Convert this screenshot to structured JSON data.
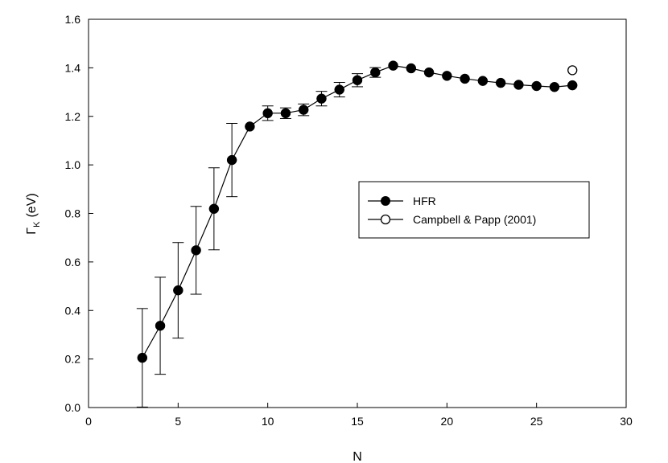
{
  "chart_data": {
    "type": "scatter",
    "xlabel": "N",
    "ylabel_main": "Γ",
    "ylabel_sub": "K",
    "ylabel_unit": "(eV)",
    "xlim": [
      0,
      30
    ],
    "ylim": [
      0,
      1.6
    ],
    "xticks": [
      0,
      5,
      10,
      15,
      20,
      25,
      30
    ],
    "yticks": [
      0.0,
      0.2,
      0.4,
      0.6,
      0.8,
      1.0,
      1.2,
      1.4,
      1.6
    ],
    "xtick_labels": [
      "0",
      "5",
      "10",
      "15",
      "20",
      "25",
      "30"
    ],
    "ytick_labels": [
      "0.0",
      "0.2",
      "0.4",
      "0.6",
      "0.8",
      "1.0",
      "1.2",
      "1.4",
      "1.6"
    ],
    "grid": false,
    "legend_position": "center-right",
    "series": [
      {
        "name": "HFR",
        "marker": "filled-circle",
        "line": true,
        "color": "#000000",
        "x": [
          3,
          4,
          5,
          6,
          7,
          8,
          9,
          10,
          11,
          12,
          13,
          14,
          15,
          16,
          17,
          18,
          19,
          20,
          21,
          22,
          23,
          24,
          25,
          26,
          27
        ],
        "y": [
          0.205,
          0.337,
          0.483,
          0.648,
          0.819,
          1.02,
          1.158,
          1.213,
          1.213,
          1.227,
          1.273,
          1.31,
          1.349,
          1.381,
          1.409,
          1.398,
          1.381,
          1.367,
          1.355,
          1.346,
          1.338,
          1.33,
          1.325,
          1.321,
          1.328
        ],
        "yerr": [
          0.203,
          0.2,
          0.197,
          0.181,
          0.169,
          0.151,
          0,
          0.03,
          0.022,
          0.024,
          0.03,
          0.03,
          0.027,
          0.02,
          0,
          0,
          0,
          0,
          0,
          0,
          0,
          0,
          0,
          0,
          0
        ]
      },
      {
        "name": "Campbell & Papp (2001)",
        "marker": "open-circle",
        "line": false,
        "color": "#000000",
        "x": [
          27
        ],
        "y": [
          1.39
        ]
      }
    ]
  }
}
